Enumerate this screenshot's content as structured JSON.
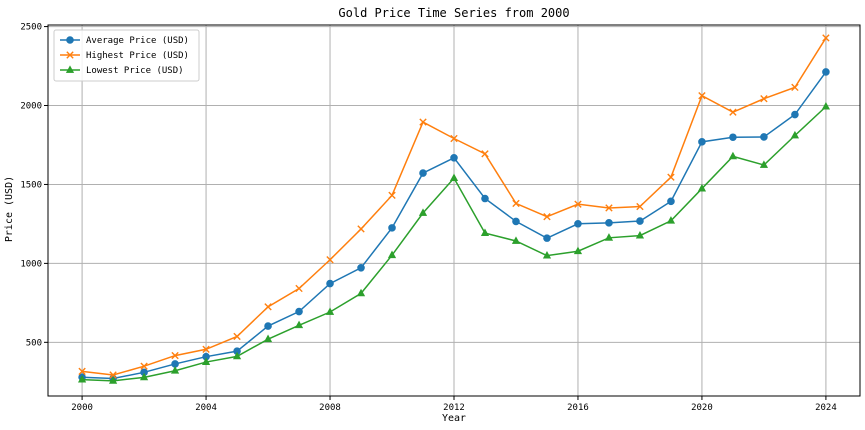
{
  "chart_data": {
    "type": "line",
    "title": "Gold Price Time Series from 2000",
    "xlabel": "Year",
    "ylabel": "Price (USD)",
    "x": [
      2000,
      2001,
      2002,
      2003,
      2004,
      2005,
      2006,
      2007,
      2008,
      2009,
      2010,
      2011,
      2012,
      2013,
      2014,
      2015,
      2016,
      2017,
      2018,
      2019,
      2020,
      2021,
      2022,
      2023,
      2024
    ],
    "xlim": [
      1998.9,
      2025.1
    ],
    "ylim": [
      160,
      2510
    ],
    "xticks": [
      2000,
      2004,
      2008,
      2012,
      2016,
      2020,
      2024
    ],
    "yticks": [
      500,
      1000,
      1500,
      2000,
      2500
    ],
    "grid": true,
    "legend_position": "upper-left",
    "series": [
      {
        "name": "Average Price (USD)",
        "color": "#1f77b4",
        "marker": "circle",
        "values": [
          279,
          271,
          310,
          363,
          409,
          444,
          603,
          695,
          872,
          972,
          1225,
          1572,
          1669,
          1411,
          1266,
          1160,
          1251,
          1257,
          1268,
          1393,
          1770,
          1799,
          1801,
          1943,
          2213
        ]
      },
      {
        "name": "Highest Price (USD)",
        "color": "#ff7f0e",
        "marker": "x",
        "values": [
          316,
          293,
          349,
          416,
          456,
          537,
          725,
          841,
          1023,
          1218,
          1431,
          1895,
          1791,
          1694,
          1380,
          1296,
          1375,
          1351,
          1360,
          1546,
          2062,
          1958,
          2043,
          2115,
          2428
        ]
      },
      {
        "name": "Lowest Price (USD)",
        "color": "#2ca02c",
        "marker": "triangle",
        "values": [
          264,
          256,
          278,
          320,
          375,
          411,
          520,
          608,
          692,
          810,
          1052,
          1319,
          1540,
          1192,
          1142,
          1049,
          1077,
          1162,
          1176,
          1270,
          1474,
          1678,
          1623,
          1810,
          1993
        ]
      }
    ]
  }
}
